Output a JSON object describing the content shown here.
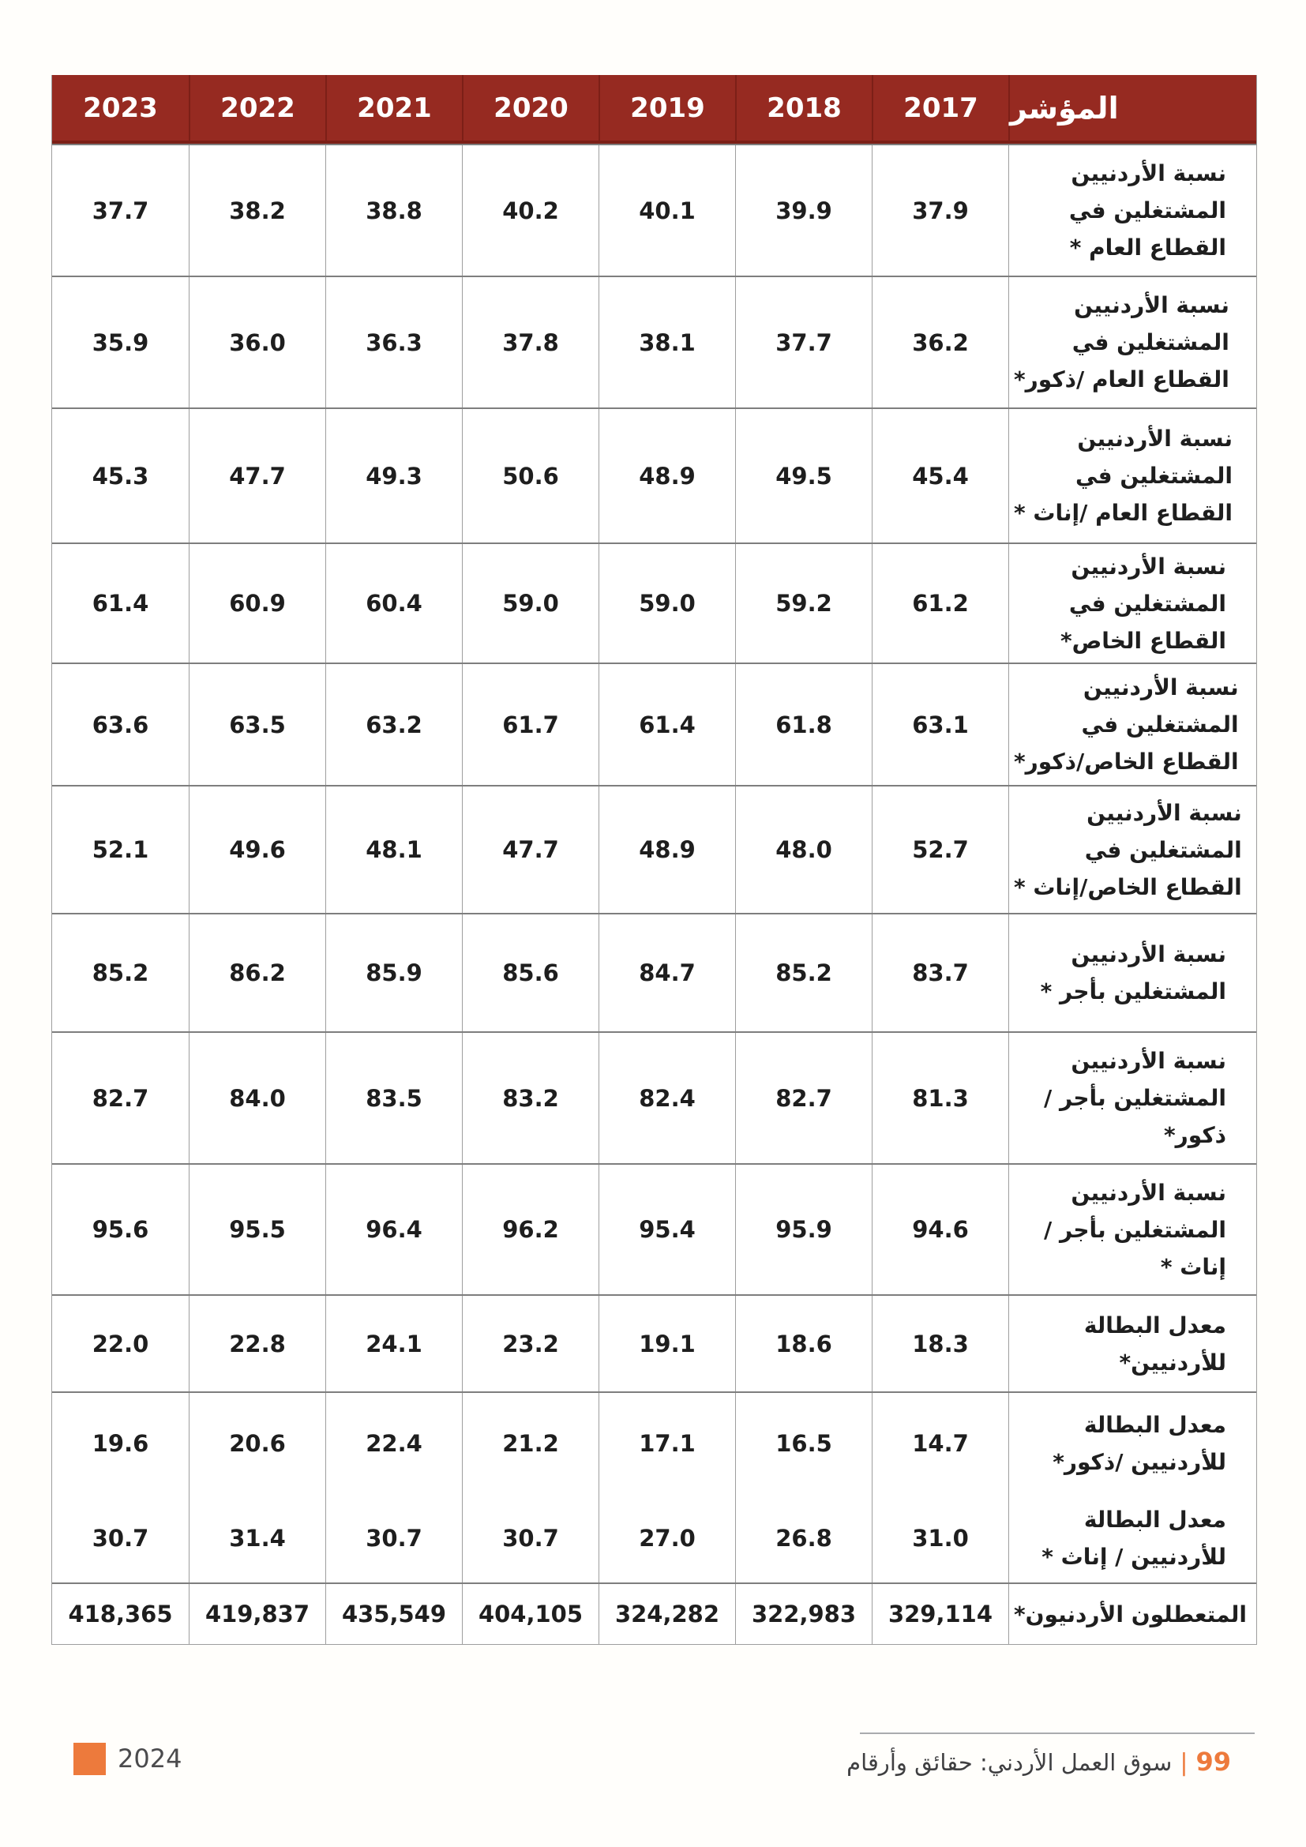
{
  "table": {
    "indicator_header": "المؤشر",
    "years": [
      "2023",
      "2022",
      "2021",
      "2020",
      "2019",
      "2018",
      "2017"
    ],
    "rows": [
      {
        "label_lines": [
          "نسبة الأردنيين",
          "المشتغلين في",
          "القطاع العام *"
        ],
        "values": [
          "37.7",
          "38.2",
          "38.8",
          "40.2",
          "40.1",
          "39.9",
          "37.9"
        ]
      },
      {
        "label_lines": [
          "نسبة الأردنيين",
          "المشتغلين في",
          "القطاع العام /ذكور*"
        ],
        "values": [
          "35.9",
          "36.0",
          "36.3",
          "37.8",
          "38.1",
          "37.7",
          "36.2"
        ]
      },
      {
        "label_lines": [
          "نسبة الأردنيين",
          "المشتغلين في",
          "القطاع العام /إناث *"
        ],
        "values": [
          "45.3",
          "47.7",
          "49.3",
          "50.6",
          "48.9",
          "49.5",
          "45.4"
        ]
      },
      {
        "label_lines": [
          "نسبة الأردنيين",
          "المشتغلين في",
          "القطاع الخاص*"
        ],
        "values": [
          "61.4",
          "60.9",
          "60.4",
          "59.0",
          "59.0",
          "59.2",
          "61.2"
        ]
      },
      {
        "label_lines": [
          "نسبة الأردنيين",
          "المشتغلين في",
          "القطاع الخاص/ذكور*"
        ],
        "values": [
          "63.6",
          "63.5",
          "63.2",
          "61.7",
          "61.4",
          "61.8",
          "63.1"
        ]
      },
      {
        "label_lines": [
          "نسبة الأردنيين",
          "المشتغلين في",
          "القطاع الخاص/إناث *"
        ],
        "values": [
          "52.1",
          "49.6",
          "48.1",
          "47.7",
          "48.9",
          "48.0",
          "52.7"
        ]
      },
      {
        "label_lines": [
          "نسبة الأردنيين",
          "المشتغلين بأجر *"
        ],
        "values": [
          "85.2",
          "86.2",
          "85.9",
          "85.6",
          "84.7",
          "85.2",
          "83.7"
        ]
      },
      {
        "label_lines": [
          "نسبة الأردنيين",
          "المشتغلين بأجر /",
          "ذكور*"
        ],
        "values": [
          "82.7",
          "84.0",
          "83.5",
          "83.2",
          "82.4",
          "82.7",
          "81.3"
        ]
      },
      {
        "label_lines": [
          "نسبة الأردنيين",
          "المشتغلين بأجر /",
          "إناث *"
        ],
        "values": [
          "95.6",
          "95.5",
          "96.4",
          "96.2",
          "95.4",
          "95.9",
          "94.6"
        ]
      },
      {
        "label_lines": [
          "معدل البطالة",
          "للأردنيين*"
        ],
        "values": [
          "22.0",
          "22.8",
          "24.1",
          "23.2",
          "19.1",
          "18.6",
          "18.3"
        ]
      },
      {
        "label_lines": [
          "معدل البطالة",
          "للأردنيين /ذكور*"
        ],
        "values": [
          "19.6",
          "20.6",
          "22.4",
          "21.2",
          "17.1",
          "16.5",
          "14.7"
        ]
      },
      {
        "label_lines": [
          "معدل البطالة",
          "للأردنيين / إناث *"
        ],
        "values": [
          "30.7",
          "31.4",
          "30.7",
          "30.7",
          "27.0",
          "26.8",
          "31.0"
        ]
      },
      {
        "label_lines": [
          "المتعطلون الأردنيون*"
        ],
        "values": [
          "418,365",
          "419,837",
          "435,549",
          "404,105",
          "324,282",
          "322,983",
          "329,114"
        ]
      }
    ]
  },
  "footer": {
    "year_badge": "2024",
    "page_number": "99",
    "separator": "|",
    "book_title": "سوق العمل الأردني: حقائق وأرقام"
  },
  "colors": {
    "header_bg": "#962A21",
    "header_divider": "#7C1F17",
    "accent_orange": "#ED7A3C",
    "grid_line_horizontal": "#7E7E7E",
    "grid_line_vertical": "#9E9E9E",
    "text": "#1E1E1E",
    "footer_text": "#3F3F41"
  }
}
